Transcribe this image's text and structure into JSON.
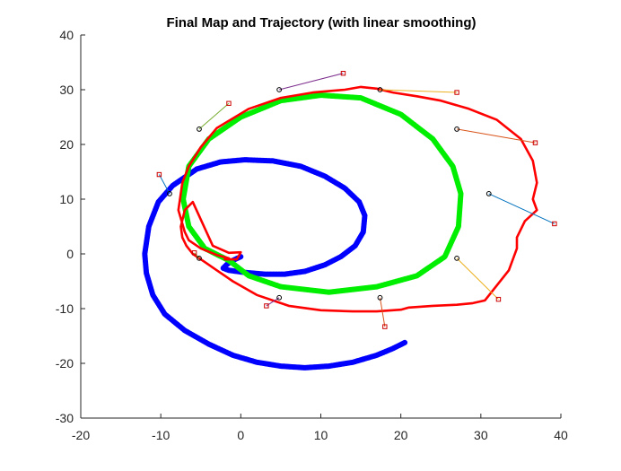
{
  "chart_data": {
    "type": "line",
    "title": "Final Map and Trajectory (with linear smoothing)",
    "xlabel": "",
    "ylabel": "",
    "xlim": [
      -20,
      40
    ],
    "ylim": [
      -30,
      40
    ],
    "xticks": [
      "-20",
      "-10",
      "0",
      "10",
      "20",
      "30",
      "40"
    ],
    "yticks": [
      "40",
      "30",
      "20",
      "10",
      "0",
      "-10",
      "-20",
      "-30"
    ],
    "grid": false,
    "series": [
      {
        "color": "#0000ff",
        "style": "thick-markers",
        "x": [
          0.0,
          -1.0,
          -1.8,
          -2.2,
          -1.5,
          0.5,
          3.0,
          5.5,
          8.0,
          10.5,
          12.5,
          14.3,
          15.3,
          15.5,
          14.8,
          13.0,
          10.5,
          7.5,
          4.0,
          0.5,
          -2.5,
          -5.5,
          -8.5,
          -10.3,
          -11.5,
          -12.0,
          -11.8,
          -11.0,
          -9.5,
          -7.0,
          -4.0,
          -1.0,
          2.0,
          5.0,
          8.0,
          11.0,
          14.0,
          17.0,
          19.0,
          20.5
        ],
        "y": [
          -0.5,
          -1.2,
          -2.0,
          -2.6,
          -3.0,
          -3.4,
          -3.7,
          -3.7,
          -3.2,
          -2.0,
          -0.5,
          1.5,
          4.0,
          7.0,
          9.5,
          12.0,
          14.2,
          16.0,
          17.0,
          17.2,
          16.8,
          15.5,
          12.5,
          9.5,
          5.0,
          0.0,
          -3.5,
          -7.5,
          -11.0,
          -14.0,
          -16.5,
          -18.5,
          -19.8,
          -20.5,
          -20.8,
          -20.5,
          -19.8,
          -18.5,
          -17.3,
          -16.2
        ]
      },
      {
        "color": "#00ee00",
        "style": "thick-markers",
        "x": [
          -1.5,
          -4.5,
          -6.5,
          -7.2,
          -6.5,
          -4.0,
          0.0,
          5.0,
          10.0,
          15.0,
          20.0,
          24.0,
          26.5,
          27.5,
          27.2,
          25.5,
          22.0,
          17.0,
          11.0,
          5.0,
          1.0,
          -1.5
        ],
        "y": [
          -1.2,
          1.0,
          5.0,
          10.0,
          16.0,
          21.0,
          25.0,
          28.0,
          29.0,
          28.5,
          25.5,
          21.0,
          16.0,
          11.0,
          5.0,
          -0.5,
          -4.0,
          -6.0,
          -7.0,
          -6.0,
          -4.0,
          -1.2
        ]
      },
      {
        "color": "#ff0000",
        "style": "line",
        "x": [
          -1.5,
          -3.0,
          -5.0,
          -6.5,
          -7.0,
          -7.8,
          -7.3,
          -6.5,
          -5.0,
          -3.0,
          1.0,
          5.0,
          9.0,
          13.0,
          15.0,
          17.0,
          19.0,
          22.0,
          25.0,
          28.5,
          32.0,
          35.0,
          36.5,
          37.0,
          36.5,
          37.0,
          35.5,
          34.5,
          34.5,
          33.5,
          30.5,
          29.0,
          27.0,
          24.0,
          21.0,
          20.0,
          17.0,
          14.0,
          10.0,
          6.0,
          2.0,
          -1.0,
          -3.0,
          -4.5,
          -6.0,
          -6.8,
          -7.3,
          -7.5,
          -7.0,
          -6.0,
          -3.5,
          -1.5,
          0.0,
          -0.5,
          -2.0
        ],
        "y": [
          -0.8,
          -0.2,
          1.0,
          2.5,
          4.0,
          8.0,
          13.0,
          16.0,
          19.5,
          23.0,
          26.5,
          28.5,
          29.5,
          30.0,
          30.5,
          30.2,
          29.5,
          28.8,
          28.0,
          26.5,
          24.5,
          21.0,
          17.0,
          13.0,
          10.0,
          8.0,
          6.0,
          3.0,
          1.0,
          -3.0,
          -8.5,
          -9.0,
          -9.3,
          -9.5,
          -9.8,
          -10.2,
          -10.5,
          -10.5,
          -10.3,
          -9.5,
          -7.5,
          -5.0,
          -3.0,
          -1.5,
          0.0,
          1.5,
          3.0,
          5.0,
          8.0,
          9.5,
          1.5,
          0.2,
          0.3,
          -1.0,
          -1.0
        ]
      }
    ],
    "landmarks": {
      "estimated": [
        [
          -8.9,
          11.0
        ],
        [
          -5.2,
          22.8
        ],
        [
          4.8,
          30.0
        ],
        [
          17.4,
          30.0
        ],
        [
          27.0,
          22.8
        ],
        [
          31.0,
          11.0
        ],
        [
          27.0,
          -0.8
        ],
        [
          17.4,
          -8.0
        ],
        [
          4.8,
          -8.0
        ],
        [
          -5.2,
          -0.8
        ]
      ],
      "true": [
        [
          -10.2,
          14.5
        ],
        [
          -1.5,
          27.5
        ],
        [
          12.8,
          33.0
        ],
        [
          27.0,
          29.5
        ],
        [
          36.8,
          20.3
        ],
        [
          39.2,
          5.5
        ],
        [
          32.2,
          -8.3
        ],
        [
          18.0,
          -13.3
        ],
        [
          3.2,
          -9.5
        ],
        [
          -5.8,
          0.2
        ]
      ],
      "link_colors": [
        "#0072bd",
        "#77ac30",
        "#7e2f8e",
        "#edb120",
        "#d95319",
        "#0072bd",
        "#edb120",
        "#d95319",
        "#7e2f8e",
        "#77ac30"
      ],
      "estimated_marker_color": "#000000",
      "true_marker_color": "#cc0000"
    }
  }
}
